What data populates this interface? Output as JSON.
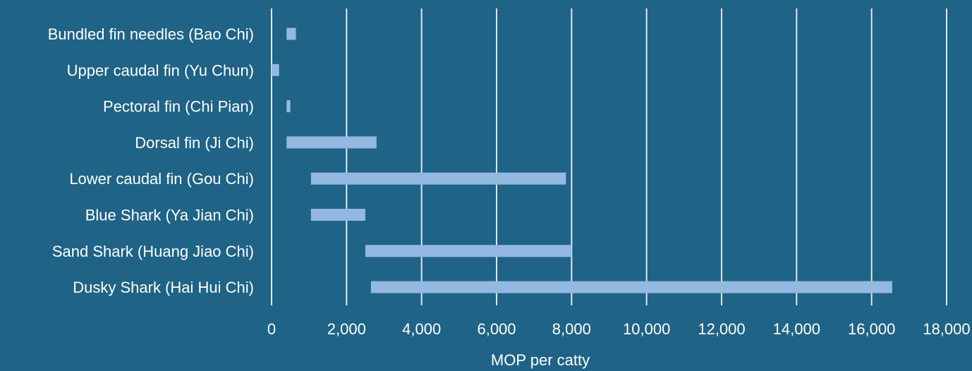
{
  "chart_data": {
    "type": "bar",
    "orientation": "horizontal",
    "subtype": "floating-range",
    "categories": [
      "Bundled fin needles (Bao Chi)",
      "Upper caudal fin (Yu Chun)",
      "Pectoral fin (Chi Pian)",
      "Dorsal fin (Ji Chi)",
      "Lower caudal fin (Gou Chi)",
      "Blue Shark (Ya Jian Chi)",
      "Sand Shark (Huang Jiao Chi)",
      "Dusky Shark (Hai Hui Chi)"
    ],
    "series": [
      {
        "ranges": [
          [
            400,
            650
          ],
          [
            0,
            200
          ],
          [
            400,
            500
          ],
          [
            400,
            2800
          ],
          [
            1050,
            7850
          ],
          [
            1050,
            2500
          ],
          [
            2500,
            8000
          ],
          [
            2650,
            16550
          ]
        ]
      }
    ],
    "xlabel": "MOP per catty",
    "ylabel": "",
    "xlim": [
      0,
      18000
    ],
    "xticks": [
      0,
      2000,
      4000,
      6000,
      8000,
      10000,
      12000,
      14000,
      16000,
      18000
    ],
    "xtick_labels": [
      "0",
      "2,000",
      "4,000",
      "6,000",
      "8,000",
      "10,000",
      "12,000",
      "14,000",
      "16,000",
      "18,000"
    ],
    "grid": "vertical",
    "legend": "none",
    "colors": {
      "background": "#1f6386",
      "bar": "#94b9e0",
      "grid": "#dfe8ef",
      "text": "#ffffff"
    }
  }
}
